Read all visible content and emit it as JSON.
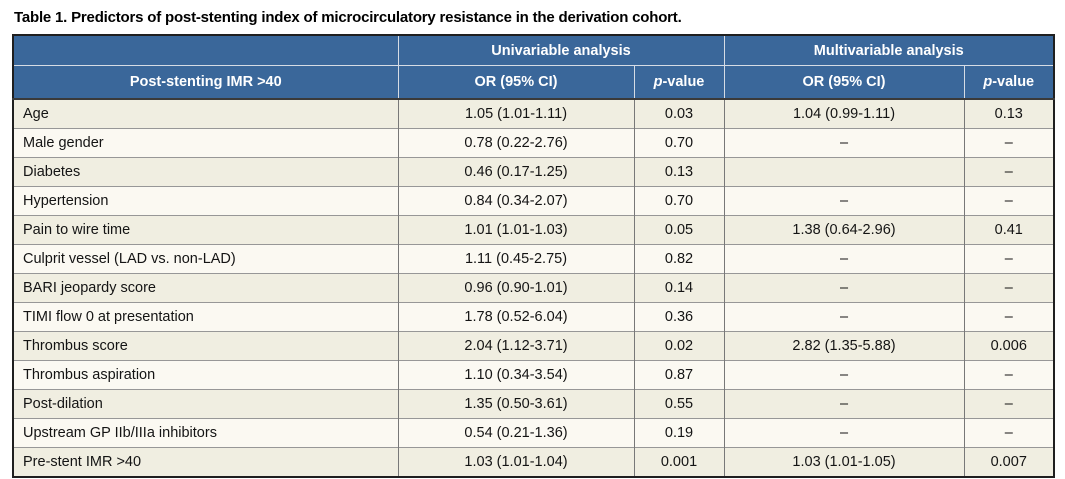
{
  "title": "Table 1. Predictors of post-stenting index of microcirculatory resistance in the derivation cohort.",
  "table": {
    "group_headers": {
      "univariable": "Univariable analysis",
      "multivariable": "Multivariable analysis"
    },
    "column_headers": {
      "predictor": "Post-stenting IMR >40",
      "or_ci": "OR (95% CI)",
      "p_italic": "p",
      "p_rest": "-value"
    },
    "colors": {
      "header_bg": "#3A679A",
      "header_text": "#FFFFFF",
      "row_beige": "#F0EEE1",
      "row_cream": "#FBF9F2"
    },
    "rows": [
      {
        "label": "Age",
        "uni_or": "1.05 (1.01-1.11)",
        "uni_p": "0.03",
        "multi_or": "1.04 (0.99-1.11)",
        "multi_p": "0.13"
      },
      {
        "label": "Male gender",
        "uni_or": "0.78 (0.22-2.76)",
        "uni_p": "0.70",
        "multi_or": "–",
        "multi_p": "–"
      },
      {
        "label": "Diabetes",
        "uni_or": "0.46 (0.17-1.25)",
        "uni_p": "0.13",
        "multi_or": "",
        "multi_p": "–"
      },
      {
        "label": "Hypertension",
        "uni_or": "0.84 (0.34-2.07)",
        "uni_p": "0.70",
        "multi_or": "–",
        "multi_p": "–"
      },
      {
        "label": "Pain to wire time",
        "uni_or": "1.01 (1.01-1.03)",
        "uni_p": "0.05",
        "multi_or": "1.38 (0.64-2.96)",
        "multi_p": "0.41"
      },
      {
        "label": "Culprit vessel (LAD vs. non-LAD)",
        "uni_or": "1.11 (0.45-2.75)",
        "uni_p": "0.82",
        "multi_or": "–",
        "multi_p": "–"
      },
      {
        "label": "BARI jeopardy score",
        "uni_or": "0.96 (0.90-1.01)",
        "uni_p": "0.14",
        "multi_or": "–",
        "multi_p": "–"
      },
      {
        "label": "TIMI flow 0 at presentation",
        "uni_or": "1.78 (0.52-6.04)",
        "uni_p": "0.36",
        "multi_or": "–",
        "multi_p": "–"
      },
      {
        "label": "Thrombus score",
        "uni_or": "2.04 (1.12-3.71)",
        "uni_p": "0.02",
        "multi_or": "2.82 (1.35-5.88)",
        "multi_p": "0.006"
      },
      {
        "label": "Thrombus aspiration",
        "uni_or": "1.10 (0.34-3.54)",
        "uni_p": "0.87",
        "multi_or": "–",
        "multi_p": "–"
      },
      {
        "label": "Post-dilation",
        "uni_or": "1.35 (0.50-3.61)",
        "uni_p": "0.55",
        "multi_or": "–",
        "multi_p": "–"
      },
      {
        "label": "Upstream GP IIb/IIIa inhibitors",
        "uni_or": "0.54 (0.21-1.36)",
        "uni_p": "0.19",
        "multi_or": "–",
        "multi_p": "–"
      },
      {
        "label": "Pre-stent IMR >40",
        "uni_or": "1.03 (1.01-1.04)",
        "uni_p": "0.001",
        "multi_or": "1.03 (1.01-1.05)",
        "multi_p": "0.007"
      }
    ]
  }
}
